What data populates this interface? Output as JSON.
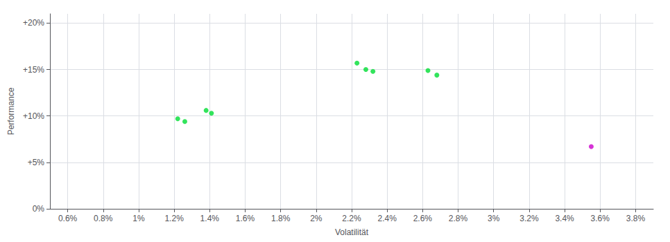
{
  "chart_data": {
    "type": "scatter",
    "x_label": "Volatilität",
    "y_label": "Performance",
    "xlim": [
      0.005,
      0.039
    ],
    "ylim": [
      0.0,
      0.21
    ],
    "xticks": [
      {
        "value": 0.006,
        "label": "0.6%"
      },
      {
        "value": 0.008,
        "label": "0.8%"
      },
      {
        "value": 0.01,
        "label": "1%"
      },
      {
        "value": 0.012,
        "label": "1.2%"
      },
      {
        "value": 0.014,
        "label": "1.4%"
      },
      {
        "value": 0.016,
        "label": "1.6%"
      },
      {
        "value": 0.018,
        "label": "1.8%"
      },
      {
        "value": 0.02,
        "label": "2%"
      },
      {
        "value": 0.022,
        "label": "2.2%"
      },
      {
        "value": 0.024,
        "label": "2.4%"
      },
      {
        "value": 0.026,
        "label": "2.6%"
      },
      {
        "value": 0.028,
        "label": "2.8%"
      },
      {
        "value": 0.03,
        "label": "3%"
      },
      {
        "value": 0.032,
        "label": "3.2%"
      },
      {
        "value": 0.034,
        "label": "3.4%"
      },
      {
        "value": 0.036,
        "label": "3.6%"
      },
      {
        "value": 0.038,
        "label": "3.8%"
      }
    ],
    "yticks": [
      {
        "value": 0.0,
        "label": "0%"
      },
      {
        "value": 0.05,
        "label": "+5%"
      },
      {
        "value": 0.1,
        "label": "+10%"
      },
      {
        "value": 0.15,
        "label": "+15%"
      },
      {
        "value": 0.2,
        "label": "+20%"
      }
    ],
    "grid": true,
    "series": [
      {
        "color": "#00dd33",
        "x": [
          0.0122,
          0.0126,
          0.0138,
          0.0141,
          0.0223,
          0.0228,
          0.0232,
          0.0263,
          0.0268
        ],
        "values": [
          0.097,
          0.094,
          0.106,
          0.103,
          0.157,
          0.15,
          0.148,
          0.149,
          0.144
        ]
      },
      {
        "color": "#cc00cc",
        "x": [
          0.0355
        ],
        "values": [
          0.067
        ]
      }
    ]
  }
}
